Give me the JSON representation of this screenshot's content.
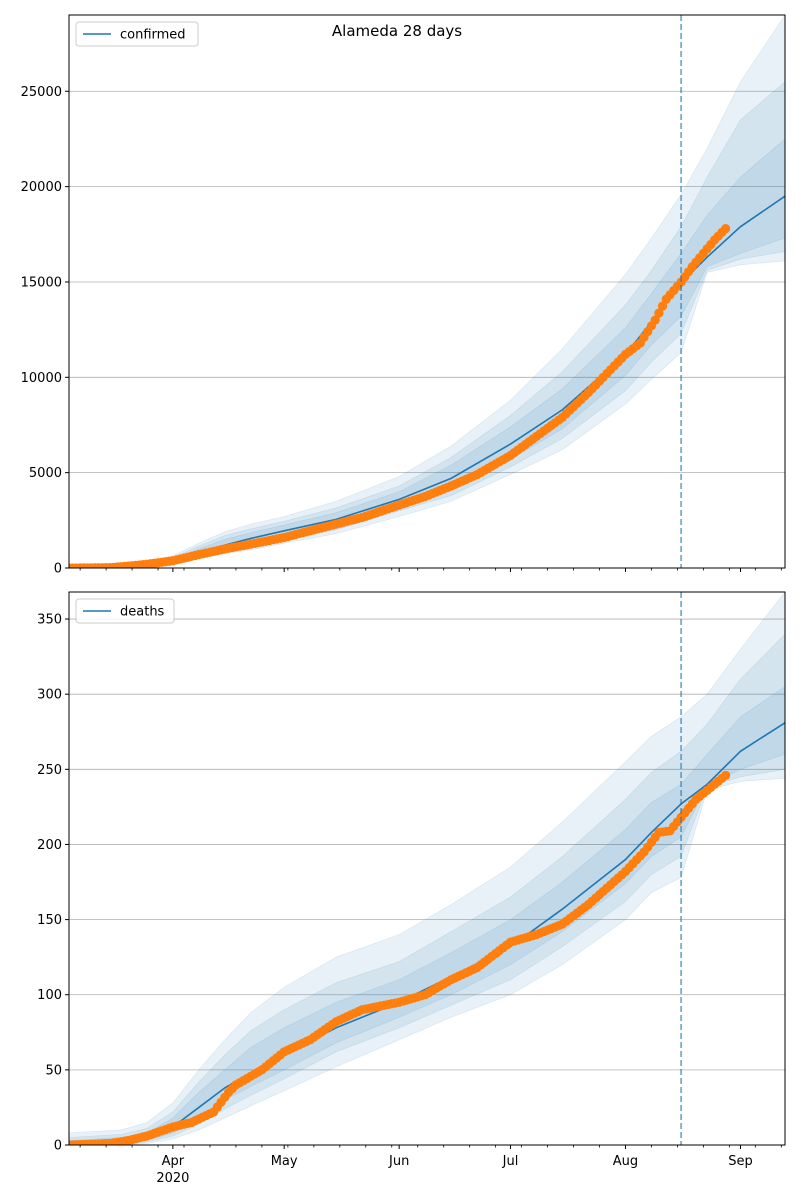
{
  "title": "Alameda 28 days",
  "colors": {
    "model": "#1f77b4",
    "observed": "#ff7f0e",
    "grid": "#b0b0b0"
  },
  "chart_data": [
    {
      "type": "line",
      "legend": "confirmed",
      "legend_position": "top-left",
      "grid": "y",
      "ylim": [
        0,
        29000
      ],
      "yticks": [
        0,
        5000,
        10000,
        15000,
        20000,
        25000
      ],
      "xlim": [
        "2020-03-04",
        "2020-09-13"
      ],
      "xticks": [
        {
          "date": "2020-04-01",
          "label": "Apr"
        },
        {
          "date": "2020-05-01",
          "label": "May"
        },
        {
          "date": "2020-06-01",
          "label": "Jun"
        },
        {
          "date": "2020-07-01",
          "label": "Jul"
        },
        {
          "date": "2020-08-01",
          "label": "Aug"
        },
        {
          "date": "2020-09-01",
          "label": "Sep"
        }
      ],
      "year_label": "2020",
      "forecast_start": "2020-08-16",
      "model": {
        "dates": [
          "2020-03-04",
          "2020-03-18",
          "2020-03-25",
          "2020-04-01",
          "2020-04-08",
          "2020-04-15",
          "2020-04-22",
          "2020-05-01",
          "2020-05-15",
          "2020-06-01",
          "2020-06-15",
          "2020-07-01",
          "2020-07-15",
          "2020-08-01",
          "2020-08-08",
          "2020-08-16",
          "2020-08-23",
          "2020-09-01",
          "2020-09-13"
        ],
        "mid": [
          0,
          50,
          150,
          400,
          800,
          1200,
          1550,
          1950,
          2550,
          3600,
          4700,
          6500,
          8300,
          11200,
          12900,
          14950,
          16300,
          17900,
          19500
        ],
        "bands": [
          {
            "lo": [
              0,
              0,
              80,
              250,
              500,
              750,
              950,
              1300,
              1800,
              2700,
              3500,
              4900,
              6200,
              8600,
              9900,
              11300,
              15500,
              15900,
              16100
            ],
            "hi": [
              10,
              120,
              300,
              650,
              1300,
              1900,
              2300,
              2700,
              3500,
              4800,
              6400,
              8800,
              11500,
              15400,
              17300,
              19600,
              22000,
              25500,
              29000
            ]
          },
          {
            "lo": [
              0,
              10,
              100,
              300,
              600,
              850,
              1100,
              1500,
              2000,
              3000,
              3800,
              5300,
              6800,
              9300,
              10800,
              12300,
              15600,
              16200,
              16600
            ],
            "hi": [
              5,
              100,
              250,
              550,
              1150,
              1700,
              2050,
              2450,
              3150,
              4300,
              5800,
              8000,
              10300,
              13800,
              15600,
              17900,
              20500,
              23500,
              25500
            ]
          },
          {
            "lo": [
              0,
              20,
              120,
              330,
              680,
              970,
              1250,
              1650,
              2200,
              3200,
              4100,
              5700,
              7300,
              10100,
              11700,
              13200,
              15800,
              16500,
              17300
            ],
            "hi": [
              3,
              80,
              200,
              480,
              1000,
              1500,
              1850,
              2250,
              2900,
              4000,
              5400,
              7400,
              9400,
              12600,
              14400,
              16500,
              18500,
              20500,
              22500
            ]
          }
        ]
      },
      "observed": {
        "dates": [
          "2020-03-04",
          "2020-03-15",
          "2020-03-20",
          "2020-03-25",
          "2020-04-01",
          "2020-04-08",
          "2020-04-15",
          "2020-04-22",
          "2020-05-01",
          "2020-05-08",
          "2020-05-15",
          "2020-05-22",
          "2020-06-01",
          "2020-06-08",
          "2020-06-15",
          "2020-06-22",
          "2020-07-01",
          "2020-07-08",
          "2020-07-15",
          "2020-07-22",
          "2020-08-01",
          "2020-08-05",
          "2020-08-09",
          "2020-08-12",
          "2020-08-16",
          "2020-08-19",
          "2020-08-22",
          "2020-08-25",
          "2020-08-28"
        ],
        "values": [
          0,
          20,
          100,
          200,
          380,
          700,
          1000,
          1250,
          1600,
          1950,
          2300,
          2650,
          3300,
          3750,
          4300,
          4900,
          5900,
          6900,
          7900,
          9200,
          11200,
          11800,
          13000,
          14100,
          15000,
          15800,
          16500,
          17200,
          17800
        ]
      }
    },
    {
      "type": "line",
      "legend": "deaths",
      "legend_position": "top-left",
      "grid": "y",
      "ylim": [
        0,
        368
      ],
      "yticks": [
        0,
        50,
        100,
        150,
        200,
        250,
        300,
        350
      ],
      "xlim": [
        "2020-03-04",
        "2020-09-13"
      ],
      "xticks": [
        {
          "date": "2020-04-01",
          "label": "Apr"
        },
        {
          "date": "2020-05-01",
          "label": "May"
        },
        {
          "date": "2020-06-01",
          "label": "Jun"
        },
        {
          "date": "2020-07-01",
          "label": "Jul"
        },
        {
          "date": "2020-08-01",
          "label": "Aug"
        },
        {
          "date": "2020-09-01",
          "label": "Sep"
        }
      ],
      "year_label": "2020",
      "forecast_start": "2020-08-16",
      "model": {
        "dates": [
          "2020-03-04",
          "2020-03-18",
          "2020-03-25",
          "2020-04-01",
          "2020-04-08",
          "2020-04-15",
          "2020-04-22",
          "2020-05-01",
          "2020-05-15",
          "2020-06-01",
          "2020-06-15",
          "2020-07-01",
          "2020-07-15",
          "2020-08-01",
          "2020-08-08",
          "2020-08-16",
          "2020-08-23",
          "2020-09-01",
          "2020-09-13"
        ],
        "mid": [
          0,
          1,
          5,
          12,
          25,
          38,
          48,
          60,
          78,
          95,
          112,
          132,
          157,
          190,
          208,
          227,
          240,
          262,
          281
        ],
        "bands": [
          {
            "lo": [
              0,
              0,
              1,
              4,
              10,
              18,
              26,
              36,
              52,
              70,
              85,
              100,
              120,
              150,
              168,
              178,
              236,
              242,
              244
            ],
            "hi": [
              8,
              10,
              15,
              28,
              50,
              70,
              88,
              105,
              125,
              140,
              160,
              185,
              215,
              255,
              272,
              285,
              300,
              330,
              368
            ]
          },
          {
            "lo": [
              0,
              0,
              2,
              6,
              14,
              24,
              33,
              44,
              62,
              78,
              93,
              110,
              132,
              162,
              180,
              192,
              238,
              245,
              250
            ],
            "hi": [
              5,
              7,
              11,
              22,
              42,
              60,
              76,
              90,
              108,
              122,
              142,
              165,
              192,
              230,
              248,
              262,
              280,
              310,
              340
            ]
          },
          {
            "lo": [
              0,
              0,
              3,
              8,
              18,
              30,
              39,
              50,
              68,
              85,
              100,
              120,
              142,
              174,
              192,
              205,
              239,
              250,
              260
            ],
            "hi": [
              3,
              5,
              8,
              18,
              35,
              50,
              65,
              78,
              95,
              110,
              128,
              150,
              175,
              210,
              228,
              240,
              260,
              285,
              305
            ]
          }
        ]
      },
      "observed": {
        "dates": [
          "2020-03-04",
          "2020-03-15",
          "2020-03-20",
          "2020-03-25",
          "2020-04-01",
          "2020-04-06",
          "2020-04-12",
          "2020-04-16",
          "2020-04-18",
          "2020-04-25",
          "2020-05-01",
          "2020-05-08",
          "2020-05-15",
          "2020-05-22",
          "2020-06-01",
          "2020-06-08",
          "2020-06-15",
          "2020-06-22",
          "2020-07-01",
          "2020-07-08",
          "2020-07-15",
          "2020-07-22",
          "2020-08-01",
          "2020-08-06",
          "2020-08-10",
          "2020-08-13",
          "2020-08-16",
          "2020-08-20",
          "2020-08-24",
          "2020-08-28"
        ],
        "values": [
          0,
          1,
          3,
          6,
          12,
          15,
          22,
          35,
          40,
          50,
          62,
          70,
          82,
          90,
          95,
          100,
          110,
          118,
          135,
          140,
          147,
          160,
          182,
          195,
          208,
          209,
          218,
          230,
          238,
          246
        ]
      }
    }
  ]
}
